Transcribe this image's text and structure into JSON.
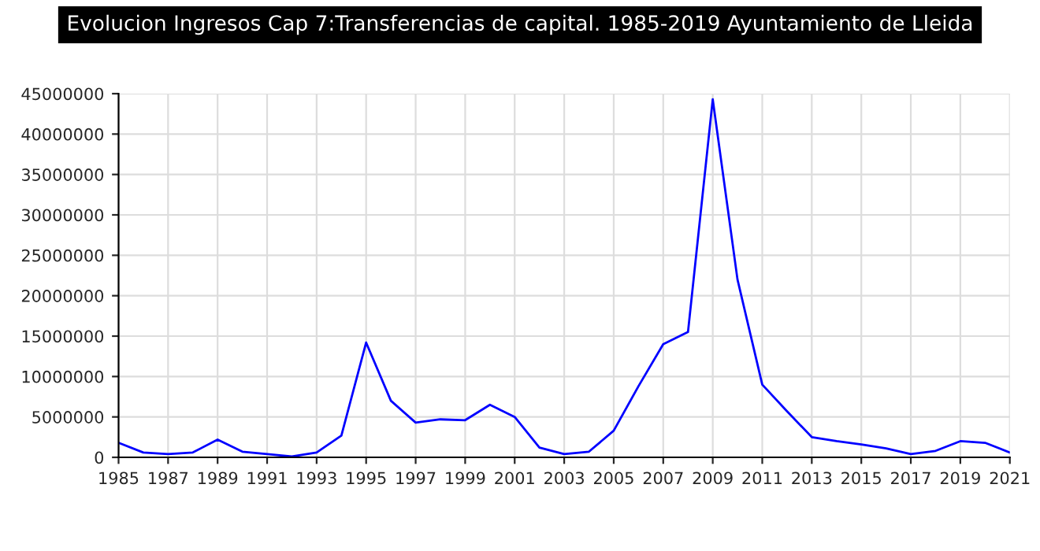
{
  "chart_data": {
    "type": "line",
    "title": "Evolucion Ingresos Cap 7:Transferencias de capital. 1985-2019 Ayuntamiento de Lleida",
    "x": [
      1985,
      1986,
      1987,
      1988,
      1989,
      1990,
      1991,
      1992,
      1993,
      1994,
      1995,
      1996,
      1997,
      1998,
      1999,
      2000,
      2001,
      2002,
      2003,
      2004,
      2005,
      2006,
      2007,
      2008,
      2009,
      2010,
      2011,
      2012,
      2013,
      2014,
      2015,
      2016,
      2017,
      2018,
      2019,
      2020,
      2021
    ],
    "series": [
      {
        "color": "#0000ff",
        "values": [
          1800000,
          600000,
          400000,
          600000,
          2200000,
          700000,
          400000,
          100000,
          600000,
          2700000,
          14200000,
          7000000,
          4300000,
          4700000,
          4600000,
          6500000,
          5000000,
          1200000,
          400000,
          700000,
          3300000,
          8800000,
          14000000,
          15500000,
          44300000,
          22000000,
          9000000,
          5700000,
          2500000,
          2000000,
          1600000,
          1100000,
          400000,
          800000,
          2000000,
          1800000,
          600000
        ]
      }
    ],
    "xlim": [
      1985,
      2021
    ],
    "xticks": [
      1985,
      1987,
      1989,
      1991,
      1993,
      1995,
      1997,
      1999,
      2001,
      2003,
      2005,
      2007,
      2009,
      2011,
      2013,
      2015,
      2017,
      2019,
      2021
    ],
    "ylim": [
      0,
      45000000
    ],
    "yticks": [
      0,
      5000000,
      10000000,
      15000000,
      20000000,
      25000000,
      30000000,
      35000000,
      40000000,
      45000000
    ],
    "grid": true,
    "legend": false,
    "marker": "none",
    "line_style": "solid"
  }
}
